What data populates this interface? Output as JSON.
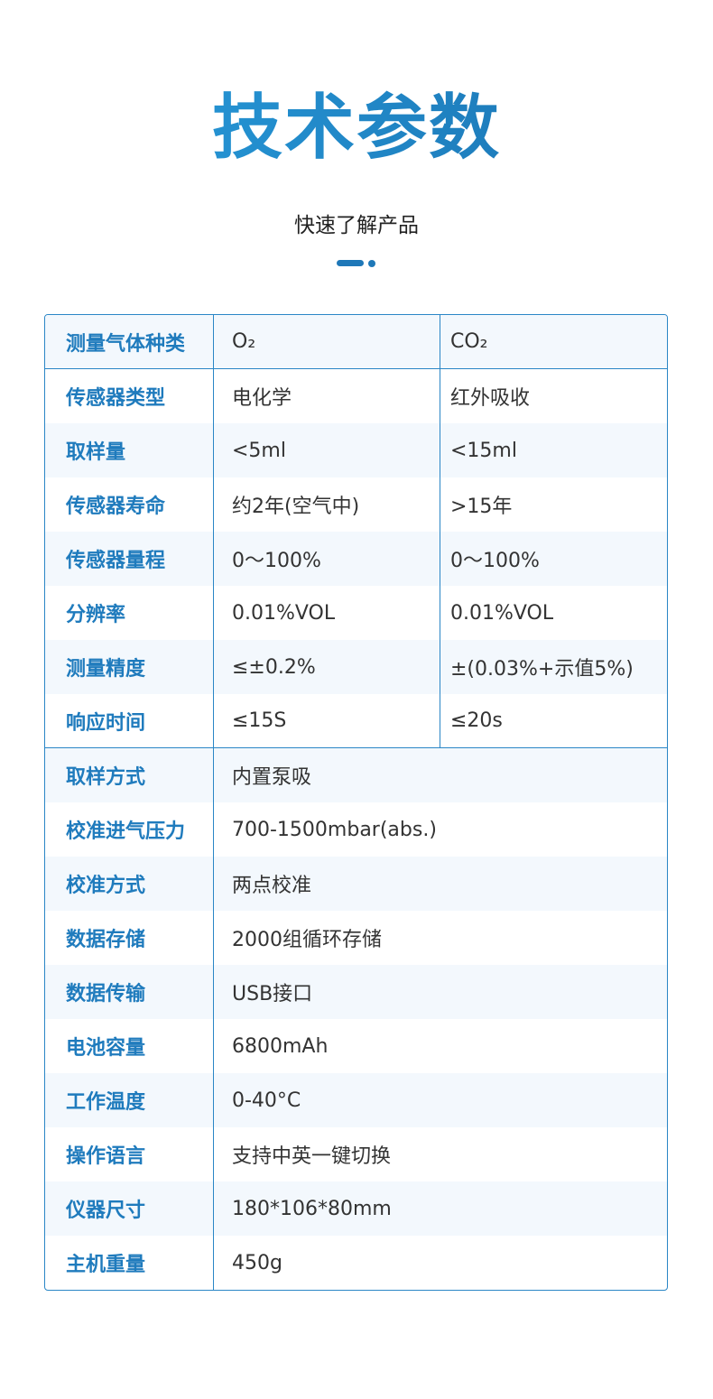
{
  "header": {
    "title": "技术参数",
    "subtitle": "快速了解产品"
  },
  "colors": {
    "accent": "#1f7bbd",
    "border": "#2a86c6",
    "stripe": "#f3f8fd"
  },
  "table": {
    "three_col": [
      {
        "label": "测量气体种类",
        "o2": "O₂",
        "co2": "CO₂"
      },
      {
        "label": "传感器类型",
        "o2": "电化学",
        "co2": "红外吸收"
      },
      {
        "label": "取样量",
        "o2": "<5ml",
        "co2": "<15ml"
      },
      {
        "label": "传感器寿命",
        "o2": "约2年(空气中)",
        "co2": ">15年"
      },
      {
        "label": "传感器量程",
        "o2": "0～100%",
        "co2": "0～100%"
      },
      {
        "label": "分辨率",
        "o2": "0.01%VOL",
        "co2": "0.01%VOL"
      },
      {
        "label": "测量精度",
        "o2": "≤±0.2%",
        "co2": "±(0.03%+示值5%)"
      },
      {
        "label": "响应时间",
        "o2": "≤15S",
        "co2": "≤20s"
      }
    ],
    "two_col": [
      {
        "label": "取样方式",
        "value": "内置泵吸"
      },
      {
        "label": "校准进气压力",
        "value": "700-1500mbar(abs.)"
      },
      {
        "label": "校准方式",
        "value": "两点校准"
      },
      {
        "label": "数据存储",
        "value": "2000组循环存储"
      },
      {
        "label": "数据传输",
        "value": "USB接口"
      },
      {
        "label": "电池容量",
        "value": "6800mAh"
      },
      {
        "label": "工作温度",
        "value": "0-40°C"
      },
      {
        "label": "操作语言",
        "value": "支持中英一键切换"
      },
      {
        "label": "仪器尺寸",
        "value": "180*106*80mm"
      },
      {
        "label": "主机重量",
        "value": "450g"
      }
    ]
  }
}
